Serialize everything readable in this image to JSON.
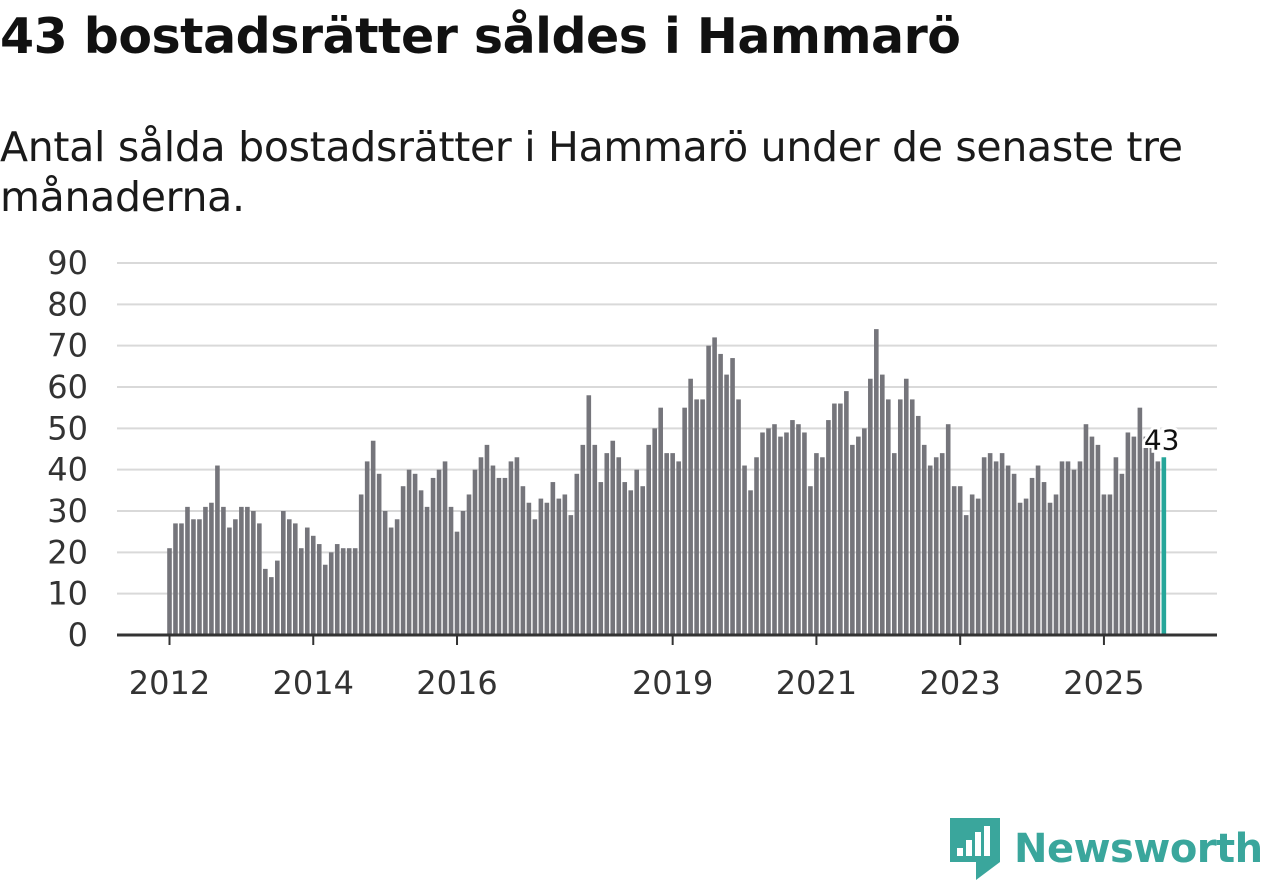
{
  "header": {
    "title": "43 bostadsrätter såldes i Hammarö",
    "subtitle": "Antal sålda bostadsrätter i Hammarö under de senaste tre månaderna."
  },
  "chart_data": {
    "type": "bar",
    "title": "43 bostadsrätter såldes i Hammarö",
    "subtitle": "Antal sålda bostadsrätter i Hammarö under de senaste tre månaderna.",
    "xlabel": "",
    "ylabel": "",
    "ylim": [
      0,
      90
    ],
    "yticks": [
      0,
      10,
      20,
      30,
      40,
      50,
      60,
      70,
      80,
      90
    ],
    "grid": true,
    "x_start": "2012-01",
    "xtick_labels": [
      {
        "label": "2012",
        "index": 0
      },
      {
        "label": "2014",
        "index": 24
      },
      {
        "label": "2016",
        "index": 48
      },
      {
        "label": "2019",
        "index": 84
      },
      {
        "label": "2021",
        "index": 108
      },
      {
        "label": "2023",
        "index": 132
      },
      {
        "label": "2025",
        "index": 156
      }
    ],
    "values": [
      21,
      27,
      27,
      31,
      28,
      28,
      31,
      32,
      41,
      31,
      26,
      28,
      31,
      31,
      30,
      27,
      16,
      14,
      18,
      30,
      28,
      27,
      21,
      26,
      24,
      22,
      17,
      20,
      22,
      21,
      21,
      21,
      34,
      42,
      47,
      39,
      30,
      26,
      28,
      36,
      40,
      39,
      35,
      31,
      38,
      40,
      42,
      31,
      25,
      30,
      34,
      40,
      43,
      46,
      41,
      38,
      38,
      42,
      43,
      36,
      32,
      28,
      33,
      32,
      37,
      33,
      34,
      29,
      39,
      46,
      58,
      46,
      37,
      44,
      47,
      43,
      37,
      35,
      40,
      36,
      46,
      50,
      55,
      44,
      44,
      42,
      55,
      62,
      57,
      57,
      70,
      72,
      68,
      63,
      67,
      57,
      41,
      35,
      43,
      49,
      50,
      51,
      48,
      49,
      52,
      51,
      49,
      36,
      44,
      43,
      52,
      56,
      56,
      59,
      46,
      48,
      50,
      62,
      74,
      63,
      57,
      44,
      57,
      62,
      57,
      53,
      46,
      41,
      43,
      44,
      51,
      36,
      36,
      29,
      34,
      33,
      43,
      44,
      42,
      44,
      41,
      39,
      32,
      33,
      38,
      41,
      37,
      32,
      34,
      42,
      42,
      40,
      42,
      51,
      48,
      46,
      34,
      34,
      43,
      39,
      49,
      48,
      55,
      48,
      47,
      42,
      43
    ],
    "highlight": {
      "value": 43,
      "label": "43",
      "color": "#26a69a"
    },
    "bar_color": "#75757b",
    "axis_color": "#333333",
    "grid_color": "#d9d9d9"
  },
  "brand": {
    "name": "Newsworthy",
    "logo_icon": "newsworthy-logo-icon",
    "color": "#3aa69c"
  }
}
